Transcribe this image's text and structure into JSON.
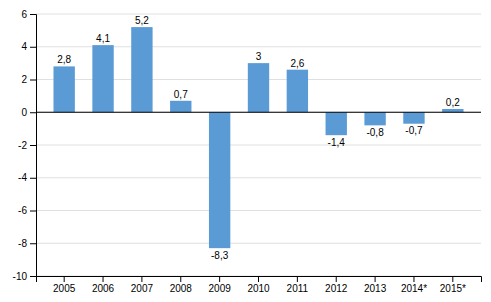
{
  "chart_data": {
    "type": "bar",
    "categories": [
      "2005",
      "2006",
      "2007",
      "2008",
      "2009",
      "2010",
      "2011",
      "2012",
      "2013",
      "2014*",
      "2015*"
    ],
    "values": [
      2.8,
      4.1,
      5.2,
      0.7,
      -8.3,
      3.0,
      2.6,
      -1.4,
      -0.8,
      -0.7,
      0.2
    ],
    "value_labels": [
      "2,8",
      "4,1",
      "5,2",
      "0,7",
      "-8,3",
      "3",
      "2,6",
      "-1,4",
      "-0,8",
      "-0,7",
      "0,2"
    ],
    "data_labels": true,
    "color": "#5B9BD5",
    "ylim": [
      -10,
      6
    ],
    "yticks": [
      -10,
      -8,
      -6,
      -4,
      -2,
      0,
      2,
      4,
      6
    ],
    "grid": true
  }
}
